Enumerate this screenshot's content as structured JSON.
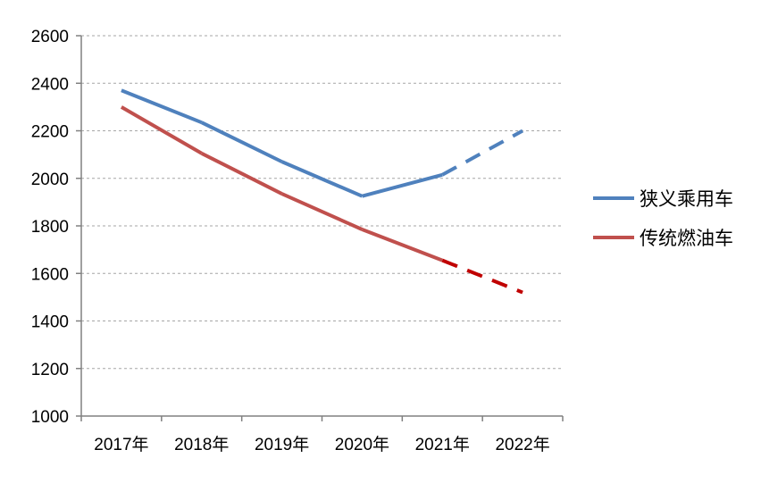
{
  "chart_data": {
    "type": "line",
    "categories": [
      "2017年",
      "2018年",
      "2019年",
      "2020年",
      "2021年",
      "2022年"
    ],
    "ylim": [
      1000,
      2600
    ],
    "yticks": [
      1000,
      1200,
      1400,
      1600,
      1800,
      2000,
      2200,
      2400,
      2600
    ],
    "grid": true,
    "legend_position": "right",
    "series": [
      {
        "name": "狭义乘用车",
        "color": "#4f81bd",
        "values": [
          2370,
          2235,
          2070,
          1925,
          2015,
          2200
        ],
        "style": [
          "solid",
          "solid",
          "solid",
          "solid",
          "dashed"
        ]
      },
      {
        "name": "传统燃油车",
        "color": "#c0504d",
        "values": [
          2300,
          2105,
          1935,
          1785,
          1655,
          1520
        ],
        "style": [
          "solid",
          "solid",
          "solid",
          "solid",
          "dashed"
        ],
        "dashed_color": "#c00000"
      }
    ]
  }
}
